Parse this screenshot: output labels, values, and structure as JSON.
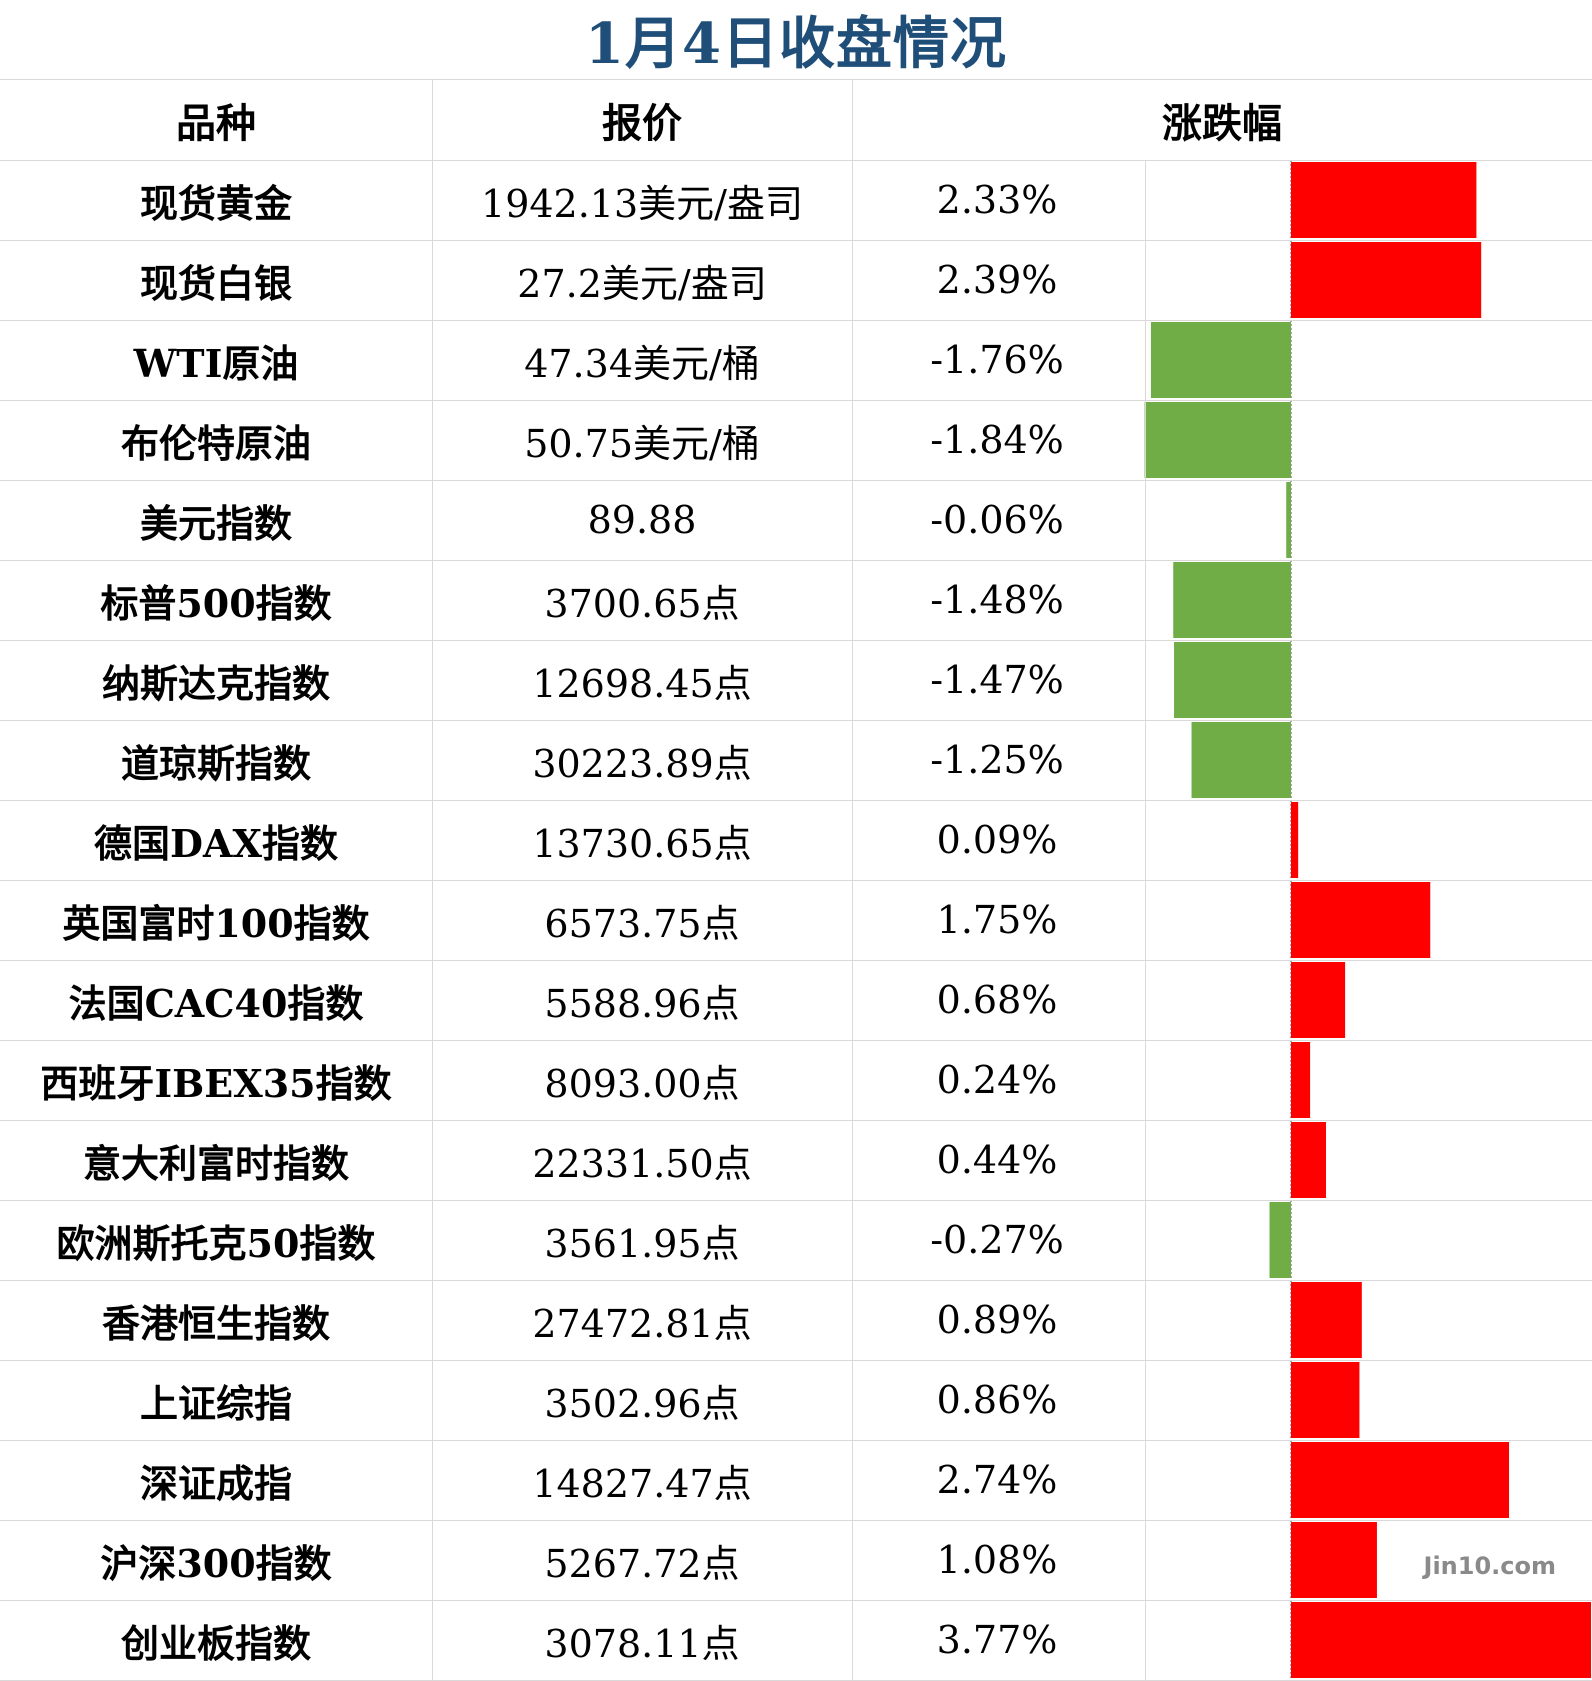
{
  "title": "1月4日收盘情况",
  "headers": {
    "name": "品种",
    "price": "报价",
    "change": "涨跌幅"
  },
  "watermark": "Jin10.com",
  "colors": {
    "up": "#ff0000",
    "down": "#70ad47",
    "title": "#1f4e79"
  },
  "rows": [
    {
      "name": "现货黄金",
      "price": "1942.13美元/盎司",
      "change": "2.33%"
    },
    {
      "name": "现货白银",
      "price": "27.2美元/盎司",
      "change": "2.39%"
    },
    {
      "name": "WTI原油",
      "price": "47.34美元/桶",
      "change": "-1.76%"
    },
    {
      "name": "布伦特原油",
      "price": "50.75美元/桶",
      "change": "-1.84%"
    },
    {
      "name": "美元指数",
      "price": "89.88",
      "change": "-0.06%"
    },
    {
      "name": "标普500指数",
      "price": "3700.65点",
      "change": "-1.48%"
    },
    {
      "name": "纳斯达克指数",
      "price": "12698.45点",
      "change": "-1.47%"
    },
    {
      "name": "道琼斯指数",
      "price": "30223.89点",
      "change": "-1.25%"
    },
    {
      "name": "德国DAX指数",
      "price": "13730.65点",
      "change": "0.09%"
    },
    {
      "name": "英国富时100指数",
      "price": "6573.75点",
      "change": "1.75%"
    },
    {
      "name": "法国CAC40指数",
      "price": "5588.96点",
      "change": "0.68%"
    },
    {
      "name": "西班牙IBEX35指数",
      "price": "8093.00点",
      "change": "0.24%"
    },
    {
      "name": "意大利富时指数",
      "price": "22331.50点",
      "change": "0.44%"
    },
    {
      "name": "欧洲斯托克50指数",
      "price": "3561.95点",
      "change": "-0.27%"
    },
    {
      "name": "香港恒生指数",
      "price": "27472.81点",
      "change": "0.89%"
    },
    {
      "name": "上证综指",
      "price": "3502.96点",
      "change": "0.86%"
    },
    {
      "name": "深证成指",
      "price": "14827.47点",
      "change": "2.74%"
    },
    {
      "name": "沪深300指数",
      "price": "5267.72点",
      "change": "1.08%"
    },
    {
      "name": "创业板指数",
      "price": "3078.11点",
      "change": "3.77%"
    }
  ],
  "chart_data": {
    "type": "bar",
    "orientation": "horizontal",
    "categories": [
      "现货黄金",
      "现货白银",
      "WTI原油",
      "布伦特原油",
      "美元指数",
      "标普500指数",
      "纳斯达克指数",
      "道琼斯指数",
      "德国DAX指数",
      "英国富时100指数",
      "法国CAC40指数",
      "西班牙IBEX35指数",
      "意大利富时指数",
      "欧洲斯托克50指数",
      "香港恒生指数",
      "上证综指",
      "深证成指",
      "沪深300指数",
      "创业板指数"
    ],
    "values": [
      2.33,
      2.39,
      -1.76,
      -1.84,
      -0.06,
      -1.48,
      -1.47,
      -1.25,
      0.09,
      1.75,
      0.68,
      0.24,
      0.44,
      -0.27,
      0.89,
      0.86,
      2.74,
      1.08,
      3.77
    ],
    "xlim": [
      -1.84,
      3.77
    ],
    "title": "",
    "xlabel": "",
    "ylabel": "",
    "grid": false
  }
}
